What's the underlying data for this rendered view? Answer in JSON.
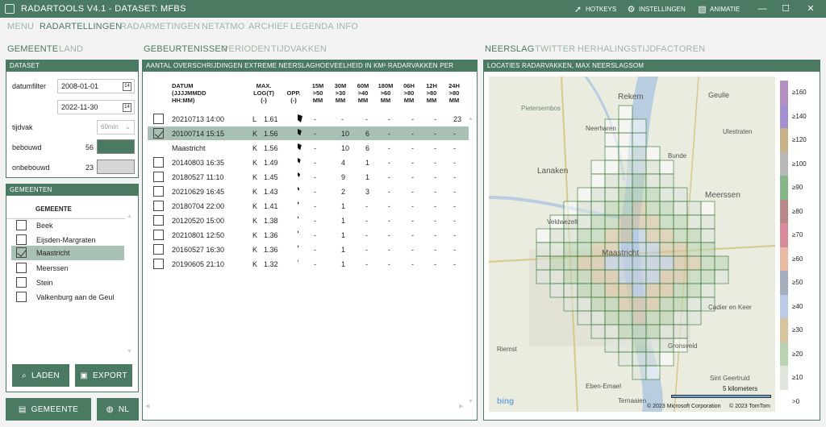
{
  "titlebar": {
    "title": "RADARTOOLS V4.1 - DATASET: MFBS",
    "hotkeys": "HOTKEYS",
    "settings": "INSTELLINGEN",
    "animation": "ANIMATIE",
    "minimize": "—",
    "maximize": "☐",
    "close": "✕"
  },
  "menu": [
    "MENU",
    "RADARTELLINGEN",
    "RADARMETINGEN",
    "NETATMO",
    "ARCHIEF",
    "LEGENDA",
    "INFO"
  ],
  "left_tabs": [
    "GEMEENTE",
    "LAND"
  ],
  "dataset": {
    "header": "DATASET",
    "datumfilter_label": "datumfilter",
    "date_from": "2008-01-01",
    "date_to": "2022-11-30",
    "cal_icon": "14",
    "tijdvak_label": "tijdvak",
    "tijdvak_value": "60min",
    "bebouwd_label": "bebouwd",
    "bebouwd_value": "56",
    "bebouwd_color": "#4a7a62",
    "onbebouwd_label": "onbebouwd",
    "onbebouwd_value": "23",
    "onbebouwd_color": "#d6d6d6"
  },
  "gemeenten": {
    "header": "GEMEENTEN",
    "col": "GEMEENTE",
    "items": [
      "Beek",
      "Eijsden-Margraten",
      "Maastricht",
      "Meerssen",
      "Stein",
      "Valkenburg aan de Geul"
    ],
    "load": "LADEN",
    "export": "EXPORT"
  },
  "bottom_buttons": {
    "gemeente": "GEMEENTE",
    "nl": "NL"
  },
  "mid_tabs": [
    "GEBEURTENISSEN",
    "PERIODEN",
    "TIJDVAKKEN"
  ],
  "events": {
    "header": "AANTAL OVERSCHRIJDINGEN EXTREME NEERSLAGHOEVEELHEID IN KM² RADARVAKKEN PER TIJDVAK",
    "columns": [
      "DATUM\n(JJJJMMDD\nHH:MM)",
      "MAX.\nLOG(T)\n(-)",
      "OPP.\n(-)",
      "15M\n>50\nMM",
      "30M\n>30\nMM",
      "60M\n>40\nMM",
      "180M\n>60\nMM",
      "06H\n>80\nMM",
      "12H\n>80\nMM",
      "24H\n>80\nMM"
    ],
    "rows": [
      [
        "20210713 14:00",
        "L",
        "1.61",
        "-",
        "-",
        "-",
        "-",
        "-",
        "-",
        "23"
      ],
      [
        "20100714 15:15",
        "K",
        "1.56",
        "-",
        "10",
        "6",
        "-",
        "-",
        "-",
        "-"
      ],
      [
        "Maastricht",
        "K",
        "1.56",
        "-",
        "10",
        "6",
        "-",
        "-",
        "-",
        "-"
      ],
      [
        "20140803 16:35",
        "K",
        "1.49",
        "-",
        "4",
        "1",
        "-",
        "-",
        "-",
        "-"
      ],
      [
        "20180527 11:10",
        "K",
        "1.45",
        "-",
        "9",
        "1",
        "-",
        "-",
        "-",
        "-"
      ],
      [
        "20210629 16:45",
        "K",
        "1.43",
        "-",
        "2",
        "3",
        "-",
        "-",
        "-",
        "-"
      ],
      [
        "20180704 22:00",
        "K",
        "1.41",
        "-",
        "1",
        "-",
        "-",
        "-",
        "-",
        "-"
      ],
      [
        "20120520 15:00",
        "K",
        "1.38",
        "-",
        "1",
        "-",
        "-",
        "-",
        "-",
        "-"
      ],
      [
        "20210801 12:50",
        "K",
        "1.36",
        "-",
        "1",
        "-",
        "-",
        "-",
        "-",
        "-"
      ],
      [
        "20160527 16:30",
        "K",
        "1.36",
        "-",
        "1",
        "-",
        "-",
        "-",
        "-",
        "-"
      ],
      [
        "20190605 21:10",
        "K",
        "1.32",
        "-",
        "1",
        "-",
        "-",
        "-",
        "-",
        "-"
      ]
    ]
  },
  "right_tabs": [
    "NEERSLAG",
    "TWITTER",
    "HERHALINGSTIJD",
    "FACTOREN"
  ],
  "map": {
    "header": "LOCATIES RADARVAKKEN, MAX NEERSLAGSOM",
    "places": [
      "Rekem",
      "Geulle",
      "Pietersembos",
      "Neerharen",
      "Ulestraten",
      "Bunde",
      "Lanaken",
      "Meerssen",
      "Veldwezelt",
      "Maastricht",
      "Cadier en Keer",
      "Riemst",
      "Gronsveld",
      "Sint Geertruid",
      "Eben-Emael",
      "Ternaaien"
    ],
    "scale_label": "5 kilometers",
    "attribution_ms": "© 2023 Microsoft Corporation",
    "attribution_tt": "© 2023 TomTom",
    "provider": "bing"
  },
  "legend": {
    "labels": [
      "≥160",
      "≥140",
      "≥120",
      "≥100",
      "≥90",
      "≥80",
      "≥70",
      "≥60",
      "≥50",
      "≥40",
      "≥30",
      "≥20",
      "≥10",
      ">0"
    ],
    "colors": [
      "#b48fc2",
      "#a48fd0",
      "#c7b188",
      "#b8b8b8",
      "#86b686",
      "#b88888",
      "#d88a9a",
      "#e9b9a4",
      "#a6aec0",
      "#b9cbe7",
      "#d7c39e",
      "#b9d3b0",
      "#dfe6dc",
      "#ffffff"
    ]
  }
}
